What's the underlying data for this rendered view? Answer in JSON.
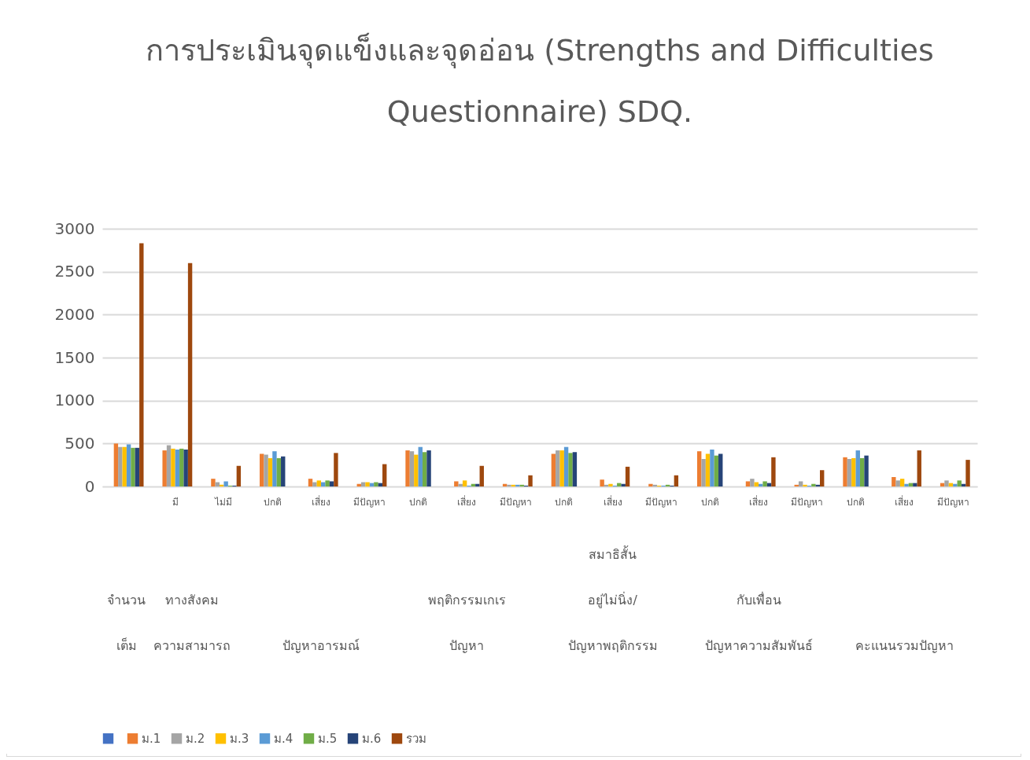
{
  "chart_data": {
    "type": "bar",
    "title": "การประเมินจุดแข็งและจุดอ่อน (Strengths and Difficulties\nQuestionnaire) SDQ.",
    "categories": [
      null,
      "มี",
      "ไม่มี",
      "ปกติ",
      "เสี่ยง",
      "มีปัญหา",
      "ปกติ",
      "เสี่ยง",
      "มีปัญหา",
      "ปกติ",
      "เสี่ยง",
      "มีปัญหา",
      "ปกติ",
      "เสี่ยง",
      "มีปัญหา",
      "ปกติ",
      "เสี่ยง",
      "มีปัญหา"
    ],
    "annotations": [
      "จำนวน\nเต็ม",
      "ทางสังคม\nความสามารถ",
      "ปัญหาอารมณ์",
      "พฤติกรรมเกเร\nปัญหา",
      "สมาธิสั้น\nอยู่ไม่นิ่ง/\nปัญหาพฤติกรรม",
      "กับเพื่อน\nปัญหาความสัมพันธ์",
      "คะแนนรวมปัญหา"
    ],
    "series": [
      {
        "color": "#4472c4",
        "values": [
          0,
          0,
          0,
          0,
          0,
          0,
          0,
          0,
          0,
          0,
          0,
          0,
          0,
          0,
          0,
          0,
          0,
          0
        ]
      },
      {
        "name": "ม.1",
        "color": "#ed7d31",
        "values": [
          500,
          420,
          90,
          380,
          90,
          30,
          420,
          60,
          30,
          380,
          80,
          30,
          410,
          60,
          20,
          340,
          110,
          40
        ]
      },
      {
        "name": "ม.2",
        "color": "#a5a5a5",
        "values": [
          460,
          480,
          50,
          370,
          50,
          50,
          410,
          30,
          20,
          420,
          20,
          20,
          320,
          90,
          60,
          320,
          70,
          70
        ]
      },
      {
        "name": "ม.3",
        "color": "#ffc000",
        "values": [
          460,
          440,
          20,
          330,
          70,
          50,
          370,
          70,
          20,
          420,
          30,
          10,
          380,
          50,
          20,
          330,
          90,
          40
        ]
      },
      {
        "name": "ม.4",
        "color": "#5b9bd5",
        "values": [
          490,
          430,
          60,
          410,
          50,
          40,
          460,
          10,
          20,
          460,
          10,
          10,
          430,
          30,
          10,
          420,
          30,
          30
        ]
      },
      {
        "name": "ม.5",
        "color": "#70ad47",
        "values": [
          450,
          440,
          10,
          330,
          70,
          50,
          400,
          30,
          20,
          390,
          40,
          20,
          360,
          60,
          30,
          330,
          40,
          70
        ]
      },
      {
        "name": "ม.6",
        "color": "#264478",
        "values": [
          450,
          430,
          10,
          350,
          60,
          40,
          420,
          30,
          10,
          400,
          30,
          10,
          380,
          40,
          20,
          360,
          40,
          30
        ]
      },
      {
        "name": "รวม",
        "color": "#9e480e",
        "values": [
          2830,
          2600,
          240,
          0,
          390,
          260,
          0,
          240,
          130,
          0,
          230,
          130,
          0,
          340,
          190,
          0,
          420,
          310
        ]
      }
    ],
    "ylim": [
      0,
      3000
    ],
    "yticks": [
      0,
      500,
      1000,
      1500,
      2000,
      2500,
      3000
    ],
    "grid": "y",
    "legend": "bottom"
  }
}
